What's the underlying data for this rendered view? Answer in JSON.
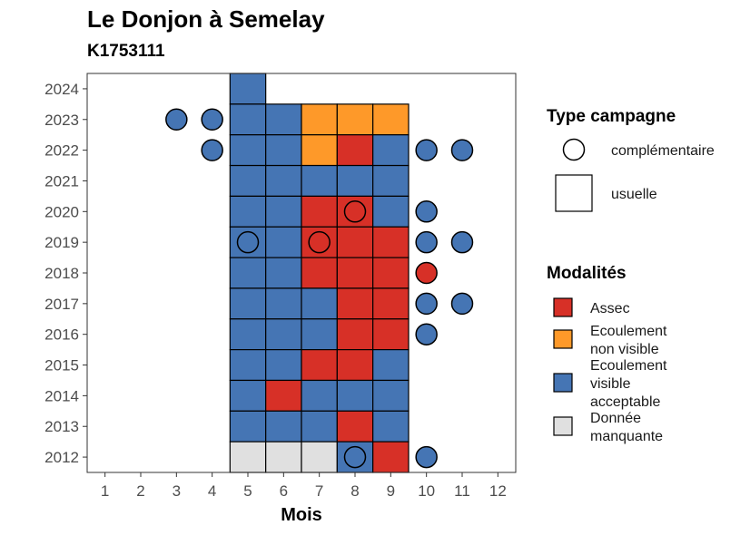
{
  "chart_data": {
    "type": "heatmap",
    "title": "Le Donjon à Semelay",
    "subtitle": "K1753111",
    "xlabel": "Mois",
    "ylabel": "",
    "x_ticks": [
      1,
      2,
      3,
      4,
      5,
      6,
      7,
      8,
      9,
      10,
      11,
      12
    ],
    "y_ticks": [
      2012,
      2013,
      2014,
      2015,
      2016,
      2017,
      2018,
      2019,
      2020,
      2021,
      2022,
      2023,
      2024
    ],
    "grid": false,
    "legend_placement": "right",
    "categories": {
      "Assec": "#d73027",
      "Ecoulement non visible": "#fe9929",
      "Ecoulement visible acceptable": "#4575b4",
      "Donnée manquante": "#e0e0e0"
    },
    "usuelle": [
      {
        "year": 2024,
        "month": 5,
        "value": "Ecoulement visible acceptable"
      },
      {
        "year": 2023,
        "month": 5,
        "value": "Ecoulement visible acceptable"
      },
      {
        "year": 2023,
        "month": 6,
        "value": "Ecoulement visible acceptable"
      },
      {
        "year": 2023,
        "month": 7,
        "value": "Ecoulement non visible"
      },
      {
        "year": 2023,
        "month": 8,
        "value": "Ecoulement non visible"
      },
      {
        "year": 2023,
        "month": 9,
        "value": "Ecoulement non visible"
      },
      {
        "year": 2022,
        "month": 5,
        "value": "Ecoulement visible acceptable"
      },
      {
        "year": 2022,
        "month": 6,
        "value": "Ecoulement visible acceptable"
      },
      {
        "year": 2022,
        "month": 7,
        "value": "Ecoulement non visible"
      },
      {
        "year": 2022,
        "month": 8,
        "value": "Assec"
      },
      {
        "year": 2022,
        "month": 9,
        "value": "Ecoulement visible acceptable"
      },
      {
        "year": 2021,
        "month": 5,
        "value": "Ecoulement visible acceptable"
      },
      {
        "year": 2021,
        "month": 6,
        "value": "Ecoulement visible acceptable"
      },
      {
        "year": 2021,
        "month": 7,
        "value": "Ecoulement visible acceptable"
      },
      {
        "year": 2021,
        "month": 8,
        "value": "Ecoulement visible acceptable"
      },
      {
        "year": 2021,
        "month": 9,
        "value": "Ecoulement visible acceptable"
      },
      {
        "year": 2020,
        "month": 5,
        "value": "Ecoulement visible acceptable"
      },
      {
        "year": 2020,
        "month": 6,
        "value": "Ecoulement visible acceptable"
      },
      {
        "year": 2020,
        "month": 7,
        "value": "Assec"
      },
      {
        "year": 2020,
        "month": 8,
        "value": "Assec"
      },
      {
        "year": 2020,
        "month": 9,
        "value": "Ecoulement visible acceptable"
      },
      {
        "year": 2019,
        "month": 5,
        "value": "Ecoulement visible acceptable"
      },
      {
        "year": 2019,
        "month": 6,
        "value": "Ecoulement visible acceptable"
      },
      {
        "year": 2019,
        "month": 7,
        "value": "Assec"
      },
      {
        "year": 2019,
        "month": 8,
        "value": "Assec"
      },
      {
        "year": 2019,
        "month": 9,
        "value": "Assec"
      },
      {
        "year": 2018,
        "month": 5,
        "value": "Ecoulement visible acceptable"
      },
      {
        "year": 2018,
        "month": 6,
        "value": "Ecoulement visible acceptable"
      },
      {
        "year": 2018,
        "month": 7,
        "value": "Assec"
      },
      {
        "year": 2018,
        "month": 8,
        "value": "Assec"
      },
      {
        "year": 2018,
        "month": 9,
        "value": "Assec"
      },
      {
        "year": 2017,
        "month": 5,
        "value": "Ecoulement visible acceptable"
      },
      {
        "year": 2017,
        "month": 6,
        "value": "Ecoulement visible acceptable"
      },
      {
        "year": 2017,
        "month": 7,
        "value": "Ecoulement visible acceptable"
      },
      {
        "year": 2017,
        "month": 8,
        "value": "Assec"
      },
      {
        "year": 2017,
        "month": 9,
        "value": "Assec"
      },
      {
        "year": 2016,
        "month": 5,
        "value": "Ecoulement visible acceptable"
      },
      {
        "year": 2016,
        "month": 6,
        "value": "Ecoulement visible acceptable"
      },
      {
        "year": 2016,
        "month": 7,
        "value": "Ecoulement visible acceptable"
      },
      {
        "year": 2016,
        "month": 8,
        "value": "Assec"
      },
      {
        "year": 2016,
        "month": 9,
        "value": "Assec"
      },
      {
        "year": 2015,
        "month": 5,
        "value": "Ecoulement visible acceptable"
      },
      {
        "year": 2015,
        "month": 6,
        "value": "Ecoulement visible acceptable"
      },
      {
        "year": 2015,
        "month": 7,
        "value": "Assec"
      },
      {
        "year": 2015,
        "month": 8,
        "value": "Assec"
      },
      {
        "year": 2015,
        "month": 9,
        "value": "Ecoulement visible acceptable"
      },
      {
        "year": 2014,
        "month": 5,
        "value": "Ecoulement visible acceptable"
      },
      {
        "year": 2014,
        "month": 6,
        "value": "Assec"
      },
      {
        "year": 2014,
        "month": 7,
        "value": "Ecoulement visible acceptable"
      },
      {
        "year": 2014,
        "month": 8,
        "value": "Ecoulement visible acceptable"
      },
      {
        "year": 2014,
        "month": 9,
        "value": "Ecoulement visible acceptable"
      },
      {
        "year": 2013,
        "month": 5,
        "value": "Ecoulement visible acceptable"
      },
      {
        "year": 2013,
        "month": 6,
        "value": "Ecoulement visible acceptable"
      },
      {
        "year": 2013,
        "month": 7,
        "value": "Ecoulement visible acceptable"
      },
      {
        "year": 2013,
        "month": 8,
        "value": "Assec"
      },
      {
        "year": 2013,
        "month": 9,
        "value": "Ecoulement visible acceptable"
      },
      {
        "year": 2012,
        "month": 5,
        "value": "Donnée manquante"
      },
      {
        "year": 2012,
        "month": 6,
        "value": "Donnée manquante"
      },
      {
        "year": 2012,
        "month": 7,
        "value": "Donnée manquante"
      },
      {
        "year": 2012,
        "month": 8,
        "value": "Ecoulement visible acceptable"
      },
      {
        "year": 2012,
        "month": 9,
        "value": "Assec"
      }
    ],
    "complementaire": [
      {
        "year": 2023,
        "month": 3,
        "value": "Ecoulement visible acceptable"
      },
      {
        "year": 2023,
        "month": 4,
        "value": "Ecoulement visible acceptable"
      },
      {
        "year": 2022,
        "month": 4,
        "value": "Ecoulement visible acceptable"
      },
      {
        "year": 2022,
        "month": 10,
        "value": "Ecoulement visible acceptable"
      },
      {
        "year": 2022,
        "month": 11,
        "value": "Ecoulement visible acceptable"
      },
      {
        "year": 2020,
        "month": 8,
        "value": "Assec"
      },
      {
        "year": 2020,
        "month": 10,
        "value": "Ecoulement visible acceptable"
      },
      {
        "year": 2019,
        "month": 5,
        "value": "Ecoulement visible acceptable"
      },
      {
        "year": 2019,
        "month": 7,
        "value": "Assec"
      },
      {
        "year": 2019,
        "month": 10,
        "value": "Ecoulement visible acceptable"
      },
      {
        "year": 2019,
        "month": 11,
        "value": "Ecoulement visible acceptable"
      },
      {
        "year": 2018,
        "month": 10,
        "value": "Assec"
      },
      {
        "year": 2017,
        "month": 10,
        "value": "Ecoulement visible acceptable"
      },
      {
        "year": 2017,
        "month": 11,
        "value": "Ecoulement visible acceptable"
      },
      {
        "year": 2016,
        "month": 10,
        "value": "Ecoulement visible acceptable"
      },
      {
        "year": 2012,
        "month": 8,
        "value": "Ecoulement visible acceptable"
      },
      {
        "year": 2012,
        "month": 10,
        "value": "Ecoulement visible acceptable"
      }
    ]
  },
  "legend": {
    "type_title": "Type campagne",
    "type_items": [
      {
        "label": "complémentaire",
        "shape": "circle"
      },
      {
        "label": "usuelle",
        "shape": "square"
      }
    ],
    "modal_title": "Modalités",
    "modal_items": [
      {
        "lines": [
          "Assec"
        ],
        "color": "#d73027"
      },
      {
        "lines": [
          "Ecoulement",
          "non visible"
        ],
        "color": "#fe9929"
      },
      {
        "lines": [
          "Ecoulement",
          "visible",
          "acceptable"
        ],
        "color": "#4575b4"
      },
      {
        "lines": [
          "Donnée",
          "manquante"
        ],
        "color": "#e0e0e0"
      }
    ]
  }
}
